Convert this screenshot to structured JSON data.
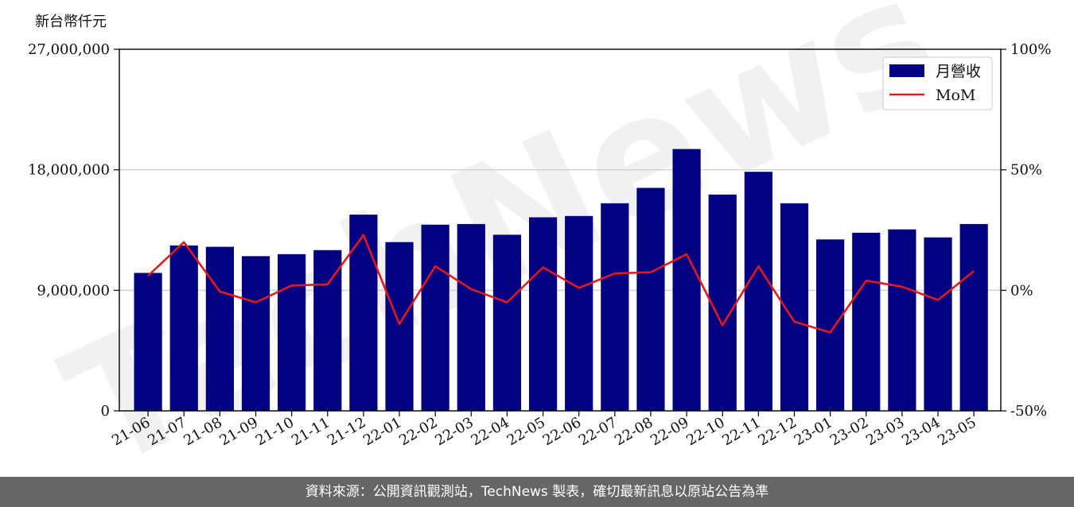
{
  "footer_text": "資料來源：公開資訊觀測站，TechNews 製表，確切最新訊息以原站公告為準",
  "watermark": "TechNews",
  "chart_data": {
    "type": "bar",
    "unit_label": "新台幣仟元",
    "categories": [
      "21-06",
      "21-07",
      "21-08",
      "21-09",
      "21-10",
      "21-11",
      "21-12",
      "22-01",
      "22-02",
      "22-03",
      "22-04",
      "22-05",
      "22-06",
      "22-07",
      "22-08",
      "22-09",
      "22-10",
      "22-11",
      "22-12",
      "23-01",
      "23-02",
      "23-03",
      "23-04",
      "23-05"
    ],
    "series": [
      {
        "name": "月營收",
        "type": "bar",
        "axis": "left",
        "color": "#000080",
        "values": [
          10300000,
          12350000,
          12250000,
          11550000,
          11700000,
          12000000,
          14650000,
          12600000,
          13900000,
          13950000,
          13150000,
          14450000,
          14550000,
          15500000,
          16650000,
          19550000,
          16150000,
          17850000,
          15500000,
          12800000,
          13300000,
          13550000,
          12950000,
          13950000
        ]
      },
      {
        "name": "MoM",
        "type": "line",
        "axis": "right",
        "color": "#e31a1c",
        "values": [
          6,
          20,
          -0.5,
          -5,
          2,
          2.5,
          23,
          -14,
          10,
          0.5,
          -5,
          9.5,
          1,
          7,
          7.5,
          15,
          -14.5,
          10,
          -13,
          -17.5,
          4,
          1.5,
          -4,
          8
        ]
      }
    ],
    "y_left": {
      "min": 0,
      "max": 27000000,
      "ticks": [
        0,
        9000000,
        18000000,
        27000000
      ],
      "tick_labels": [
        "0",
        "9,000,000",
        "18,000,000",
        "27,000,000"
      ]
    },
    "y_right": {
      "min": -50,
      "max": 100,
      "ticks": [
        -50,
        0,
        50,
        100
      ],
      "tick_labels": [
        "-50%",
        "0%",
        "50%",
        "100%"
      ]
    },
    "grid": "horizontal",
    "legend_position": "top-right"
  }
}
